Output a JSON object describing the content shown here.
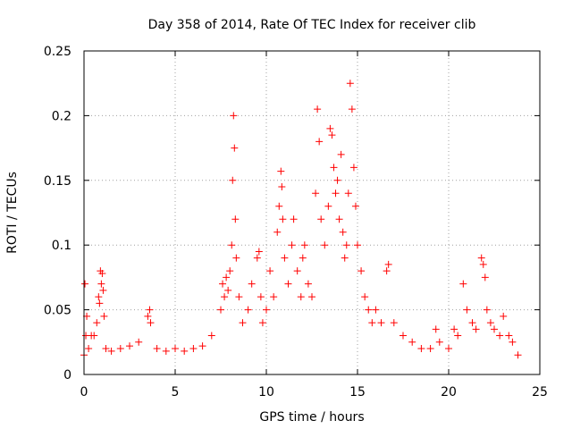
{
  "chart_data": {
    "type": "scatter",
    "title": "Day 358 of 2014, Rate Of TEC Index for receiver clib",
    "xlabel": "GPS time / hours",
    "ylabel": "ROTI / TECUs",
    "xlim": [
      0,
      25
    ],
    "ylim": [
      0,
      0.25
    ],
    "xticks": [
      0,
      5,
      10,
      15,
      20,
      25
    ],
    "xtick_labels": [
      "0",
      "5",
      "10",
      "15",
      "20",
      "25"
    ],
    "yticks": [
      0,
      0.05,
      0.1,
      0.15,
      0.2,
      0.25
    ],
    "ytick_labels": [
      "0",
      "0.05",
      "0.1",
      "0.15",
      "0.2",
      "0.25"
    ],
    "grid": true,
    "marker": "+",
    "color": "#ff0000",
    "series": [
      {
        "name": "ROTI",
        "x": [
          0.0,
          0.05,
          0.1,
          0.15,
          0.25,
          0.4,
          0.55,
          0.7,
          0.8,
          0.85,
          0.9,
          0.95,
          1.0,
          1.05,
          1.1,
          1.2,
          1.5,
          2.0,
          2.5,
          3.0,
          3.5,
          3.6,
          3.65,
          4.0,
          4.5,
          5.0,
          5.5,
          6.0,
          6.5,
          7.0,
          7.5,
          7.6,
          7.7,
          7.8,
          7.9,
          8.0,
          8.1,
          8.15,
          8.2,
          8.25,
          8.3,
          8.35,
          8.5,
          8.7,
          9.0,
          9.2,
          9.5,
          9.6,
          9.7,
          9.8,
          10.0,
          10.2,
          10.4,
          10.6,
          10.7,
          10.8,
          10.85,
          10.9,
          11.0,
          11.2,
          11.4,
          11.5,
          11.7,
          11.9,
          12.0,
          12.1,
          12.3,
          12.5,
          12.7,
          12.8,
          12.9,
          13.0,
          13.2,
          13.4,
          13.5,
          13.6,
          13.7,
          13.8,
          13.9,
          14.0,
          14.1,
          14.2,
          14.3,
          14.4,
          14.5,
          14.6,
          14.7,
          14.8,
          14.9,
          15.0,
          15.2,
          15.4,
          15.6,
          15.8,
          16.0,
          16.3,
          16.6,
          16.7,
          17.0,
          17.5,
          18.0,
          18.5,
          19.0,
          19.3,
          19.5,
          20.0,
          20.3,
          20.5,
          20.8,
          21.0,
          21.3,
          21.5,
          21.8,
          21.9,
          22.0,
          22.1,
          22.3,
          22.5,
          22.8,
          23.0,
          23.3,
          23.5,
          23.8
        ],
        "y": [
          0.015,
          0.07,
          0.03,
          0.045,
          0.02,
          0.03,
          0.03,
          0.04,
          0.06,
          0.055,
          0.08,
          0.07,
          0.078,
          0.065,
          0.045,
          0.02,
          0.018,
          0.02,
          0.022,
          0.025,
          0.045,
          0.05,
          0.04,
          0.02,
          0.018,
          0.02,
          0.018,
          0.02,
          0.022,
          0.03,
          0.05,
          0.07,
          0.06,
          0.075,
          0.065,
          0.08,
          0.1,
          0.15,
          0.2,
          0.175,
          0.12,
          0.09,
          0.06,
          0.04,
          0.05,
          0.07,
          0.09,
          0.095,
          0.06,
          0.04,
          0.05,
          0.08,
          0.06,
          0.11,
          0.13,
          0.157,
          0.145,
          0.12,
          0.09,
          0.07,
          0.1,
          0.12,
          0.08,
          0.06,
          0.09,
          0.1,
          0.07,
          0.06,
          0.14,
          0.205,
          0.18,
          0.12,
          0.1,
          0.13,
          0.19,
          0.185,
          0.16,
          0.14,
          0.15,
          0.12,
          0.17,
          0.11,
          0.09,
          0.1,
          0.14,
          0.225,
          0.205,
          0.16,
          0.13,
          0.1,
          0.08,
          0.06,
          0.05,
          0.04,
          0.05,
          0.04,
          0.08,
          0.085,
          0.04,
          0.03,
          0.025,
          0.02,
          0.02,
          0.035,
          0.025,
          0.02,
          0.035,
          0.03,
          0.07,
          0.05,
          0.04,
          0.035,
          0.09,
          0.085,
          0.075,
          0.05,
          0.04,
          0.035,
          0.03,
          0.045,
          0.03,
          0.025,
          0.015
        ]
      }
    ]
  }
}
